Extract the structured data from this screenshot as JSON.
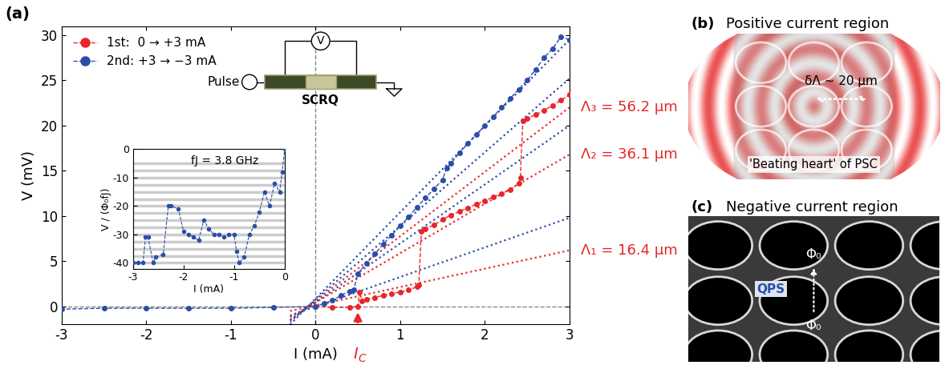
{
  "chart_data": [
    {
      "type": "line",
      "title": "(a)",
      "x_label": "I (mA)",
      "y_label": "V (mV)",
      "xlim": [
        -3,
        3
      ],
      "xticks": [
        -3,
        -2,
        -1,
        0,
        1,
        2,
        3
      ],
      "ylim": [
        -2,
        31
      ],
      "yticks": [
        0,
        5,
        10,
        15,
        20,
        25,
        30
      ],
      "legend": "upper left",
      "ref_lines": {
        "x": 0,
        "y": 0
      },
      "series": [
        {
          "name": "1st:  0 → +3 mA",
          "color": "#e8262a",
          "marker": "circle",
          "line_style": "dashed",
          "x": [
            0,
            0.2,
            0.4,
            0.5,
            0.52,
            0.55,
            0.6,
            0.7,
            0.8,
            0.9,
            1.0,
            1.1,
            1.2,
            1.22,
            1.25,
            1.3,
            1.4,
            1.5,
            1.6,
            1.7,
            1.8,
            1.9,
            2.0,
            2.1,
            2.2,
            2.3,
            2.4,
            2.42,
            2.45,
            2.5,
            2.6,
            2.7,
            2.8,
            2.9,
            3.0
          ],
          "values": [
            0,
            -0.1,
            -0.1,
            0,
            1.6,
            0.6,
            0.8,
            1.0,
            1.2,
            1.4,
            1.6,
            1.8,
            2.2,
            2.4,
            8.3,
            8.6,
            9.0,
            9.6,
            10.1,
            10.5,
            10.9,
            11.3,
            11.7,
            12.1,
            12.5,
            12.9,
            13.6,
            14.2,
            20.5,
            20.8,
            21.2,
            21.7,
            22.2,
            22.8,
            23.4
          ]
        },
        {
          "name": "2nd: +3 → −3 mA",
          "color": "#2b4ea6",
          "marker": "circle",
          "line_style": "dashed",
          "x": [
            3.0,
            2.9,
            2.8,
            2.7,
            2.6,
            2.5,
            2.4,
            2.3,
            2.2,
            2.1,
            2.0,
            1.9,
            1.8,
            1.7,
            1.6,
            1.55,
            1.5,
            1.4,
            1.3,
            1.2,
            1.1,
            1.0,
            0.9,
            0.8,
            0.7,
            0.6,
            0.5,
            0.45,
            0.4,
            0.3,
            0.2,
            0.1,
            0.0,
            -0.5,
            -1.0,
            -1.5,
            -2.0,
            -2.5,
            -3.0
          ],
          "values": [
            29.5,
            29.8,
            28.5,
            27.5,
            26.2,
            25.0,
            24.0,
            23.0,
            22.0,
            21.0,
            20.0,
            19.0,
            18.0,
            17.0,
            15.8,
            15.3,
            14.0,
            13.0,
            12.0,
            11.0,
            9.9,
            8.9,
            7.9,
            6.9,
            5.8,
            4.8,
            3.6,
            1.8,
            1.7,
            1.2,
            0.7,
            0.3,
            0.0,
            -0.1,
            -0.2,
            -0.2,
            -0.2,
            -0.2,
            -0.3
          ]
        }
      ],
      "fits": [
        {
          "label": "Λ₃ = 56.2 μm",
          "color": "#e8262a",
          "line_style": "dotted",
          "x": [
            -0.3,
            3
          ],
          "values": [
            -1.5,
            22.0
          ]
        },
        {
          "label": "Λ₂ = 36.1 μm",
          "color": "#e8262a",
          "line_style": "dotted",
          "x": [
            -0.3,
            3
          ],
          "values": [
            -1.2,
            16.8
          ]
        },
        {
          "label": "Λ₁ = 16.4 μm",
          "color": "#e8262a",
          "line_style": "dotted",
          "x": [
            -0.3,
            3
          ],
          "values": [
            -0.5,
            6.2
          ]
        },
        {
          "color": "#2b4ea6",
          "line_style": "dotted",
          "x": [
            -0.3,
            3
          ],
          "values": [
            -1.0,
            9.8
          ]
        },
        {
          "color": "#2b4ea6",
          "line_style": "dotted",
          "x": [
            -0.3,
            3
          ],
          "values": [
            -1.5,
            20.0
          ]
        },
        {
          "color": "#2b4ea6",
          "line_style": "dotted",
          "x": [
            -0.3,
            3
          ],
          "values": [
            -1.7,
            25.2
          ]
        },
        {
          "color": "#2b4ea6",
          "line_style": "dotted",
          "x": [
            -0.3,
            3
          ],
          "values": [
            -2.0,
            29.5
          ]
        }
      ],
      "ic_marker": {
        "text": "IC",
        "x": 0.5,
        "color": "#e8262a"
      },
      "schematic": {
        "source": "Pulse",
        "meter": "V",
        "device": "SCRQ"
      }
    },
    {
      "type": "line",
      "x_label": "I (mA)",
      "y_label": "V / (Φ₀fJ)",
      "annotation": "fJ = 3.8 GHz",
      "xlim": [
        -3,
        0
      ],
      "xticks": [
        -3,
        -2,
        -1,
        0
      ],
      "ylim": [
        -42,
        0
      ],
      "yticks": [
        -40,
        -30,
        -20,
        -10,
        0
      ],
      "levels": [
        -40,
        -37.5,
        -35,
        -32.5,
        -30,
        -27.5,
        -25,
        -22.5,
        -20,
        -17.5,
        -15,
        -12.5,
        -10,
        -7.5,
        -5
      ],
      "color": "#2b4ea6",
      "marker": "circle",
      "line_style": "dashed",
      "x": [
        -3.0,
        -2.9,
        -2.8,
        -2.75,
        -2.7,
        -2.6,
        -2.55,
        -2.4,
        -2.3,
        -2.25,
        -2.1,
        -2.0,
        -1.9,
        -1.8,
        -1.7,
        -1.6,
        -1.5,
        -1.4,
        -1.3,
        -1.2,
        -1.1,
        -1.0,
        -0.95,
        -0.9,
        -0.8,
        -0.7,
        -0.6,
        -0.5,
        -0.4,
        -0.3,
        -0.2,
        -0.1,
        -0.05,
        0.0
      ],
      "values": [
        -40,
        -40,
        -40,
        -31,
        -31,
        -40,
        -38,
        -37,
        -20,
        -20,
        -21,
        -29,
        -30,
        -31,
        -32,
        -25,
        -28,
        -30,
        -30,
        -31,
        -30,
        -30,
        -36,
        -40,
        -38,
        -30,
        -27,
        -22,
        -15,
        -20,
        -12,
        -15,
        -8,
        0
      ]
    }
  ],
  "panel_b": {
    "label": "(b)",
    "title": "Positive current region",
    "arrow_text": "δΛ ~ 20 μm",
    "caption": "'Beating heart' of PSC"
  },
  "panel_c": {
    "label": "(c)",
    "title": "Negative current region",
    "box_text": "QPS",
    "flux_top": "Φ₀",
    "flux_bottom": "Φ₀"
  }
}
